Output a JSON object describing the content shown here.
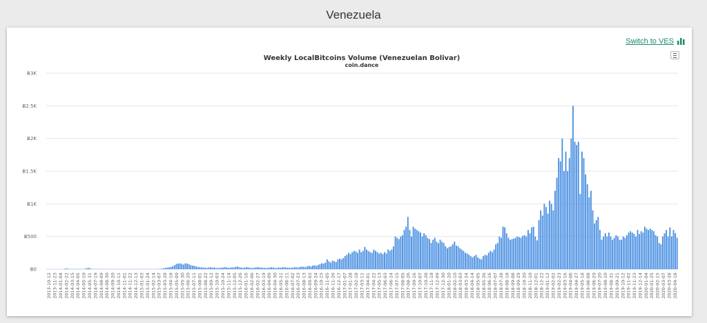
{
  "page": {
    "title": "Venezuela"
  },
  "toolbar": {
    "switch_label": "Switch to VES",
    "switch_icon": "bar-chart-icon",
    "accent": "#1a8a6e",
    "menu_icon": "hamburger-menu-icon"
  },
  "chart_data": {
    "type": "bar",
    "title": "Weekly LocalBitcoins Volume (Venezuelan Bolivar)",
    "subtitle": "coin.dance",
    "bar_color": "#4a90e2",
    "grid": true,
    "ylim": [
      0,
      3000
    ],
    "y_ticks": [
      0,
      500,
      1000,
      1500,
      2000,
      2500,
      3000
    ],
    "y_tick_labels": [
      "Ƀ0",
      "Ƀ500",
      "Ƀ1K",
      "Ƀ1.5K",
      "Ƀ2K",
      "Ƀ2.5K",
      "Ƀ3K"
    ],
    "x_tick_labels": [
      "2013-10-12",
      "2013-11-23",
      "2014-01-04",
      "2014-02-22",
      "2014-03-15",
      "2014-04-05",
      "2014-05-10",
      "2014-05-31",
      "2014-07-19",
      "2014-08-09",
      "2014-08-30",
      "2014-09-20",
      "2014-10-11",
      "2014-11-01",
      "2014-11-22",
      "2014-12-13",
      "2015-01-03",
      "2015-01-24",
      "2015-02-14",
      "2015-03-07",
      "2015-03-28",
      "2015-04-18",
      "2015-05-09",
      "2015-05-30",
      "2015-06-20",
      "2015-07-11",
      "2015-08-01",
      "2015-08-22",
      "2015-09-12",
      "2015-10-03",
      "2015-10-24",
      "2015-11-14",
      "2015-12-05",
      "2015-12-26",
      "2016-01-16",
      "2016-02-06",
      "2016-02-27",
      "2016-03-19",
      "2016-04-09",
      "2016-04-30",
      "2016-05-21",
      "2016-06-11",
      "2016-07-02",
      "2016-07-23",
      "2016-08-13",
      "2016-09-03",
      "2016-09-24",
      "2016-10-15",
      "2016-11-05",
      "2016-11-26",
      "2016-12-17",
      "2017-01-07",
      "2017-01-28",
      "2017-02-18",
      "2017-03-11",
      "2017-04-01",
      "2017-04-22",
      "2017-05-13",
      "2017-06-03",
      "2017-06-24",
      "2017-07-15",
      "2017-08-05",
      "2017-08-26",
      "2017-09-16",
      "2017-10-07",
      "2017-10-28",
      "2017-11-18",
      "2017-12-09",
      "2017-12-30",
      "2018-01-20",
      "2018-02-10",
      "2018-03-03",
      "2018-03-24",
      "2018-04-14",
      "2018-05-05",
      "2018-05-26",
      "2018-06-16",
      "2018-07-07",
      "2018-07-28",
      "2018-08-18",
      "2018-09-08",
      "2018-09-29",
      "2018-10-20",
      "2018-11-10",
      "2018-12-01",
      "2018-12-22",
      "2019-01-12",
      "2019-02-02",
      "2019-02-23",
      "2019-03-16",
      "2019-04-06",
      "2019-04-27",
      "2019-05-18",
      "2019-06-08",
      "2019-06-29",
      "2019-07-20",
      "2019-08-10",
      "2019-08-31",
      "2019-09-21",
      "2019-10-12",
      "2019-11-02",
      "2019-11-23",
      "2019-12-14",
      "2020-01-04",
      "2020-01-25",
      "2020-02-15",
      "2020-03-07",
      "2020-03-28",
      "2020-04-18"
    ],
    "values": [
      0,
      0,
      0,
      0,
      0,
      0,
      0,
      0,
      0,
      0,
      8,
      10,
      5,
      3,
      2,
      2,
      3,
      2,
      2,
      3,
      2,
      5,
      15,
      18,
      12,
      3,
      2,
      2,
      2,
      2,
      2,
      3,
      2,
      2,
      1,
      1,
      1,
      1,
      1,
      1,
      1,
      1,
      1,
      1,
      1,
      1,
      1,
      1,
      1,
      1,
      1,
      1,
      2,
      2,
      2,
      2,
      1,
      1,
      1,
      1,
      1,
      2,
      3,
      5,
      8,
      15,
      20,
      25,
      30,
      35,
      45,
      60,
      80,
      85,
      90,
      80,
      70,
      90,
      85,
      75,
      60,
      55,
      50,
      40,
      35,
      30,
      28,
      25,
      22,
      20,
      25,
      30,
      25,
      25,
      20,
      18,
      20,
      22,
      25,
      30,
      28,
      20,
      22,
      30,
      25,
      35,
      40,
      30,
      25,
      20,
      25,
      30,
      28,
      20,
      18,
      20,
      25,
      30,
      28,
      25,
      22,
      20,
      18,
      20,
      25,
      30,
      25,
      20,
      18,
      25,
      22,
      28,
      30,
      25,
      25,
      20,
      22,
      25,
      30,
      28,
      25,
      35,
      40,
      35,
      30,
      45,
      50,
      40,
      55,
      60,
      50,
      65,
      75,
      90,
      85,
      100,
      150,
      120,
      100,
      130,
      120,
      110,
      150,
      160,
      150,
      170,
      200,
      220,
      250,
      230,
      260,
      280,
      270,
      250,
      300,
      260,
      280,
      340,
      300,
      280,
      260,
      250,
      300,
      280,
      260,
      240,
      250,
      230,
      260,
      240,
      300,
      280,
      300,
      350,
      500,
      480,
      460,
      500,
      520,
      600,
      650,
      800,
      600,
      500,
      650,
      620,
      600,
      580,
      560,
      500,
      550,
      520,
      480,
      460,
      400,
      450,
      480,
      420,
      400,
      450,
      420,
      400,
      350,
      320,
      340,
      350,
      380,
      420,
      360,
      350,
      320,
      300,
      280,
      250,
      240,
      220,
      200,
      180,
      200,
      220,
      180,
      160,
      150,
      200,
      220,
      210,
      250,
      280,
      260,
      300,
      380,
      400,
      500,
      480,
      650,
      640,
      550,
      480,
      450,
      460,
      470,
      480,
      500,
      490,
      480,
      510,
      520,
      500,
      600,
      550,
      640,
      650,
      500,
      440,
      750,
      900,
      820,
      1000,
      950,
      850,
      1050,
      1000,
      900,
      1200,
      1400,
      1700,
      1650,
      2000,
      1500,
      1800,
      1500,
      1700,
      2000,
      2500,
      1950,
      1900,
      1950,
      1150,
      1800,
      1700,
      1450,
      1300,
      1100,
      1200,
      900,
      700,
      750,
      800,
      600,
      450,
      500,
      550,
      500,
      560,
      500,
      450,
      480,
      520,
      500,
      450,
      450,
      500,
      480,
      520,
      560,
      580,
      560,
      540,
      500,
      600,
      540,
      580,
      560,
      650,
      620,
      600,
      620,
      600,
      580,
      520,
      500,
      400,
      380,
      500,
      550,
      600,
      500,
      640,
      500,
      600,
      550,
      480
    ]
  }
}
